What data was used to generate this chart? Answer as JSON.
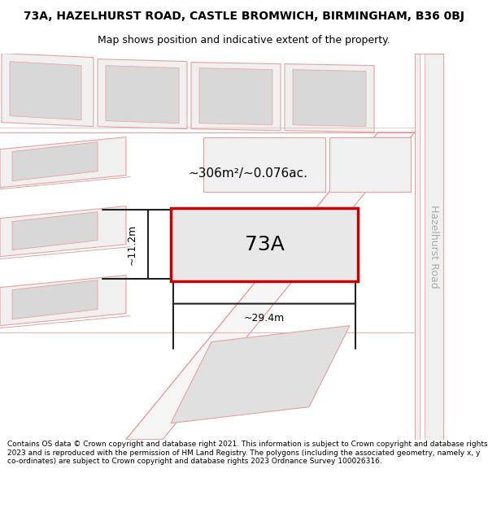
{
  "title_line1": "73A, HAZELHURST ROAD, CASTLE BROMWICH, BIRMINGHAM, B36 0BJ",
  "title_line2": "Map shows position and indicative extent of the property.",
  "footer_text": "Contains OS data © Crown copyright and database right 2021. This information is subject to Crown copyright and database rights 2023 and is reproduced with the permission of HM Land Registry. The polygons (including the associated geometry, namely x, y co-ordinates) are subject to Crown copyright and database rights 2023 Ordnance Survey 100026316.",
  "area_label": "~306m²/~0.076ac.",
  "width_label": "~29.4m",
  "height_label": "~11.2m",
  "property_label": "73A",
  "road_label": "Hazelhurst Road",
  "road_color": "#e8a0a0",
  "plot_fill_light": "#f0f0f0",
  "plot_fill_gray": "#d8d8d8",
  "road_fill": "#eeeeee",
  "highlight_stroke": "#cc0000",
  "highlight_fill": "#e8e8e8",
  "map_bg": "#ffffff",
  "footer_bg": "#ffffff",
  "title_fontsize": 10,
  "subtitle_fontsize": 9,
  "footer_fontsize": 6.5
}
